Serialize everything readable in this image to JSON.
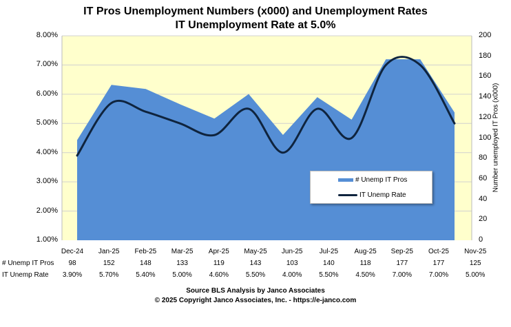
{
  "chart_data": {
    "type": "area+line",
    "title": "IT Pros Unemployment Numbers (x000) and Unemployment Rates",
    "subtitle": "IT Unemployment Rate at 5.0%",
    "categories": [
      "Dec-24",
      "Jan-25",
      "Feb-25",
      "Mar-25",
      "Apr-25",
      "May-25",
      "Jun-25",
      "Jul-25",
      "Aug-25",
      "Sep-25",
      "Oct-25",
      "Nov-25"
    ],
    "series": [
      {
        "name": "# Unemp IT Pros",
        "type": "area",
        "axis": "right",
        "color": "#558ED5",
        "values": [
          98,
          152,
          148,
          133,
          119,
          143,
          103,
          140,
          118,
          177,
          177,
          125
        ],
        "labels": [
          "98",
          "152",
          "148",
          "133",
          "119",
          "143",
          "103",
          "140",
          "118",
          "177",
          "177",
          "125"
        ]
      },
      {
        "name": "IT Unemp Rate",
        "type": "line",
        "smooth": true,
        "axis": "left",
        "color": "#0F243E",
        "values": [
          3.9,
          5.7,
          5.4,
          5.0,
          4.6,
          5.5,
          4.0,
          5.5,
          4.5,
          7.0,
          7.0,
          5.0
        ],
        "labels": [
          "3.90%",
          "5.70%",
          "5.40%",
          "5.00%",
          "4.60%",
          "5.50%",
          "4.00%",
          "5.50%",
          "4.50%",
          "7.00%",
          "7.00%",
          "5.00%"
        ]
      }
    ],
    "left_axis": {
      "range": [
        1,
        8
      ],
      "ticks": [
        "1.00%",
        "2.00%",
        "3.00%",
        "4.00%",
        "5.00%",
        "6.00%",
        "7.00%",
        "8.00%"
      ]
    },
    "right_axis": {
      "range": [
        0,
        200
      ],
      "label": "Number unemployed IT Pros (x000)",
      "ticks": [
        "0",
        "20",
        "40",
        "60",
        "80",
        "100",
        "120",
        "140",
        "160",
        "180",
        "200"
      ]
    },
    "grid": true,
    "legend_placement": "center-right",
    "plot_background": "#FFFFCC",
    "table_row_labels": [
      "# Unemp IT Pros",
      "IT Unemp Rate"
    ]
  },
  "footer": {
    "source": "Source BLS Analysis by Janco Associates",
    "copyright": "© 2025 Copyright Janco Associates, Inc. - https://e-janco.com"
  }
}
